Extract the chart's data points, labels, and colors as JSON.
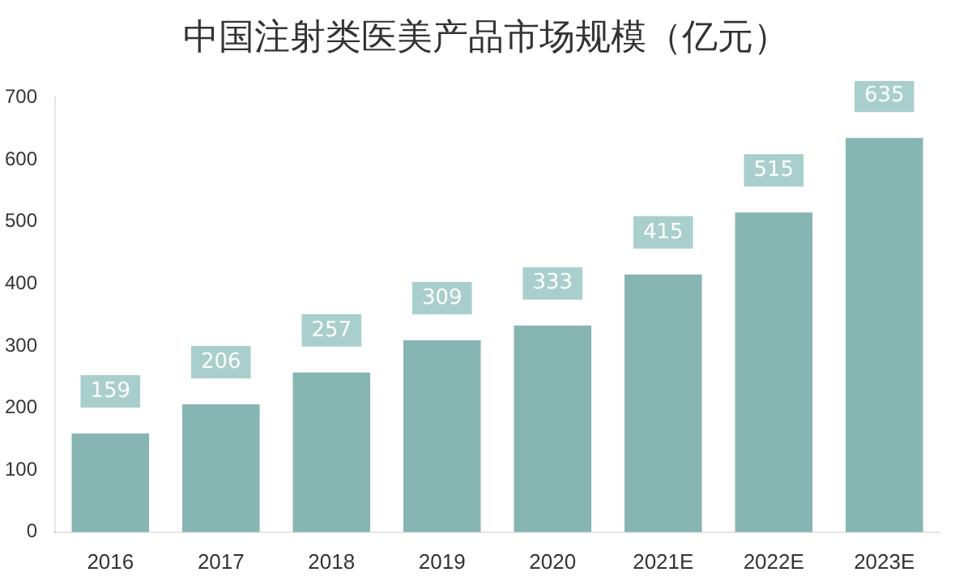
{
  "chart_data": {
    "type": "bar",
    "title": "中国注射类医美产品市场规模（亿元）",
    "categories": [
      "2016",
      "2017",
      "2018",
      "2019",
      "2020",
      "2021E",
      "2022E",
      "2023E"
    ],
    "values": [
      159,
      206,
      257,
      309,
      333,
      415,
      515,
      635
    ],
    "color": "#86b5b2",
    "ylim": [
      0,
      700
    ],
    "yticks": [
      0,
      100,
      200,
      300,
      400,
      500,
      600,
      700
    ],
    "grid": false,
    "data_labels": true,
    "legend": false
  }
}
